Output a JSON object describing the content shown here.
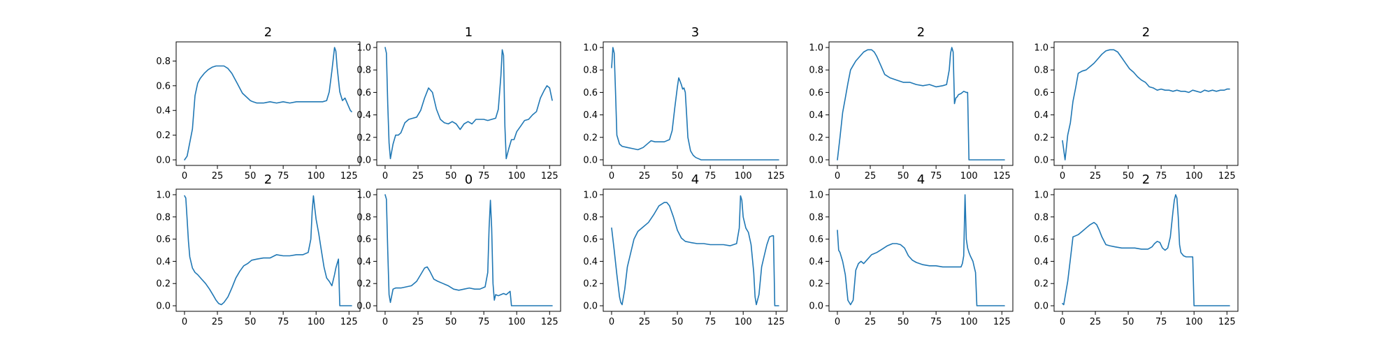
{
  "figure": {
    "line_color": "#1f77b4"
  },
  "chart_data": [
    {
      "type": "line",
      "title": "2",
      "xlim": [
        -6.35,
        133.35
      ],
      "ylim": [
        -0.045,
        0.955
      ],
      "xticks": [
        0,
        25,
        50,
        75,
        100,
        125
      ],
      "yticks": [
        0.0,
        0.2,
        0.4,
        0.6,
        0.8
      ],
      "ytick_labels": [
        "0.0",
        "0.2",
        "0.4",
        "0.6",
        "0.8"
      ],
      "x": [
        0,
        2,
        4,
        6,
        8,
        10,
        12,
        15,
        18,
        21,
        24,
        27,
        30,
        33,
        36,
        40,
        44,
        48,
        50,
        52,
        55,
        60,
        65,
        70,
        75,
        80,
        85,
        90,
        95,
        100,
        105,
        108,
        110,
        112,
        114,
        115,
        116,
        117,
        118,
        120,
        122,
        124,
        126,
        127
      ],
      "y": [
        0.0,
        0.03,
        0.14,
        0.25,
        0.52,
        0.62,
        0.66,
        0.7,
        0.73,
        0.75,
        0.76,
        0.76,
        0.76,
        0.74,
        0.7,
        0.62,
        0.54,
        0.5,
        0.48,
        0.47,
        0.46,
        0.46,
        0.47,
        0.46,
        0.47,
        0.46,
        0.47,
        0.47,
        0.47,
        0.47,
        0.47,
        0.48,
        0.55,
        0.72,
        0.91,
        0.88,
        0.75,
        0.65,
        0.55,
        0.48,
        0.5,
        0.45,
        0.4,
        0.39
      ]
    },
    {
      "type": "line",
      "title": "1",
      "xlim": [
        -6.35,
        133.35
      ],
      "ylim": [
        -0.05,
        1.05
      ],
      "xticks": [
        0,
        25,
        50,
        75,
        100,
        125
      ],
      "yticks": [
        0.0,
        0.2,
        0.4,
        0.6,
        0.8,
        1.0
      ],
      "ytick_labels": [
        "0.0",
        "0.2",
        "0.4",
        "0.6",
        "0.8",
        "1.0"
      ],
      "x": [
        0,
        1,
        2,
        3,
        4,
        6,
        8,
        10,
        12,
        15,
        18,
        21,
        24,
        27,
        30,
        33,
        36,
        39,
        42,
        45,
        48,
        51,
        54,
        57,
        60,
        63,
        66,
        69,
        72,
        75,
        78,
        81,
        84,
        86,
        88,
        89,
        90,
        91,
        92,
        94,
        96,
        98,
        100,
        103,
        106,
        109,
        112,
        115,
        118,
        121,
        123,
        125,
        127
      ],
      "y": [
        1.0,
        0.95,
        0.5,
        0.15,
        0.01,
        0.14,
        0.22,
        0.22,
        0.24,
        0.33,
        0.36,
        0.37,
        0.38,
        0.44,
        0.55,
        0.64,
        0.6,
        0.45,
        0.36,
        0.33,
        0.32,
        0.34,
        0.32,
        0.27,
        0.32,
        0.34,
        0.32,
        0.36,
        0.36,
        0.36,
        0.35,
        0.36,
        0.37,
        0.45,
        0.75,
        0.98,
        0.93,
        0.3,
        0.01,
        0.1,
        0.18,
        0.18,
        0.25,
        0.3,
        0.35,
        0.36,
        0.4,
        0.43,
        0.55,
        0.62,
        0.66,
        0.64,
        0.53
      ]
    },
    {
      "type": "line",
      "title": "3",
      "xlim": [
        -6.35,
        133.35
      ],
      "ylim": [
        -0.05,
        1.05
      ],
      "xticks": [
        0,
        25,
        50,
        75,
        100,
        125
      ],
      "yticks": [
        0.0,
        0.2,
        0.4,
        0.6,
        0.8,
        1.0
      ],
      "ytick_labels": [
        "0.0",
        "0.2",
        "0.4",
        "0.6",
        "0.8",
        "1.0"
      ],
      "x": [
        0,
        1,
        2,
        3,
        4,
        6,
        8,
        12,
        16,
        20,
        24,
        28,
        30,
        33,
        36,
        40,
        44,
        46,
        48,
        50,
        51,
        52,
        53,
        54,
        55,
        56,
        57,
        58,
        60,
        62,
        64,
        66,
        68,
        70,
        75,
        80,
        90,
        100,
        110,
        120,
        127
      ],
      "y": [
        0.82,
        1.0,
        0.95,
        0.6,
        0.22,
        0.14,
        0.12,
        0.11,
        0.1,
        0.09,
        0.11,
        0.15,
        0.17,
        0.16,
        0.16,
        0.16,
        0.18,
        0.26,
        0.46,
        0.65,
        0.73,
        0.7,
        0.67,
        0.63,
        0.64,
        0.6,
        0.4,
        0.2,
        0.08,
        0.04,
        0.02,
        0.01,
        0.0,
        0.0,
        0.0,
        0.0,
        0.0,
        0.0,
        0.0,
        0.0,
        0.0
      ]
    },
    {
      "type": "line",
      "title": "2",
      "xlim": [
        -6.35,
        133.35
      ],
      "ylim": [
        -0.05,
        1.05
      ],
      "xticks": [
        0,
        25,
        50,
        75,
        100,
        125
      ],
      "yticks": [
        0.0,
        0.2,
        0.4,
        0.6,
        0.8,
        1.0
      ],
      "ytick_labels": [
        "0.0",
        "0.2",
        "0.4",
        "0.6",
        "0.8",
        "1.0"
      ],
      "x": [
        0,
        2,
        4,
        6,
        8,
        10,
        12,
        14,
        17,
        20,
        23,
        26,
        28,
        30,
        33,
        36,
        40,
        45,
        50,
        55,
        60,
        65,
        70,
        75,
        80,
        83,
        85,
        86,
        87,
        88,
        89,
        90,
        91,
        92,
        94,
        96,
        98,
        99,
        100,
        101,
        102,
        105,
        110,
        115,
        120,
        127
      ],
      "y": [
        0.0,
        0.2,
        0.42,
        0.55,
        0.68,
        0.8,
        0.84,
        0.88,
        0.92,
        0.96,
        0.98,
        0.98,
        0.96,
        0.92,
        0.84,
        0.76,
        0.73,
        0.71,
        0.69,
        0.69,
        0.67,
        0.66,
        0.67,
        0.65,
        0.66,
        0.67,
        0.8,
        0.95,
        1.0,
        0.96,
        0.5,
        0.55,
        0.56,
        0.58,
        0.59,
        0.61,
        0.6,
        0.6,
        0.0,
        0.0,
        0.0,
        0.0,
        0.0,
        0.0,
        0.0,
        0.0
      ]
    },
    {
      "type": "line",
      "title": "2",
      "xlim": [
        -6.35,
        133.35
      ],
      "ylim": [
        -0.05,
        1.05
      ],
      "xticks": [
        0,
        25,
        50,
        75,
        100,
        125
      ],
      "yticks": [
        0.0,
        0.2,
        0.4,
        0.6,
        0.8,
        1.0
      ],
      "ytick_labels": [
        "0.0",
        "0.2",
        "0.4",
        "0.6",
        "0.8",
        "1.0"
      ],
      "x": [
        0,
        2,
        4,
        6,
        8,
        10,
        12,
        15,
        18,
        21,
        24,
        27,
        30,
        33,
        36,
        39,
        42,
        45,
        48,
        51,
        54,
        57,
        60,
        63,
        66,
        69,
        72,
        75,
        78,
        81,
        84,
        87,
        90,
        93,
        96,
        99,
        102,
        105,
        108,
        111,
        114,
        117,
        120,
        123,
        125,
        127
      ],
      "y": [
        0.17,
        0.0,
        0.22,
        0.33,
        0.52,
        0.64,
        0.77,
        0.79,
        0.8,
        0.83,
        0.86,
        0.9,
        0.94,
        0.97,
        0.98,
        0.98,
        0.96,
        0.91,
        0.86,
        0.81,
        0.78,
        0.74,
        0.71,
        0.69,
        0.65,
        0.64,
        0.62,
        0.63,
        0.62,
        0.62,
        0.61,
        0.62,
        0.61,
        0.61,
        0.6,
        0.62,
        0.61,
        0.6,
        0.62,
        0.61,
        0.62,
        0.61,
        0.62,
        0.62,
        0.63,
        0.63
      ]
    },
    {
      "type": "line",
      "title": "2",
      "xlim": [
        -6.35,
        133.35
      ],
      "ylim": [
        -0.05,
        1.05
      ],
      "xticks": [
        0,
        25,
        50,
        75,
        100,
        125
      ],
      "yticks": [
        0.0,
        0.2,
        0.4,
        0.6,
        0.8,
        1.0
      ],
      "ytick_labels": [
        "0.0",
        "0.2",
        "0.4",
        "0.6",
        "0.8",
        "1.0"
      ],
      "x": [
        0,
        1,
        2,
        3,
        4,
        6,
        8,
        10,
        13,
        16,
        19,
        22,
        24,
        26,
        28,
        30,
        33,
        36,
        39,
        42,
        45,
        48,
        51,
        55,
        60,
        65,
        70,
        75,
        80,
        85,
        90,
        94,
        96,
        97,
        98,
        99,
        100,
        102,
        104,
        106,
        108,
        110,
        112,
        114,
        115,
        116,
        117,
        118,
        120,
        122,
        124,
        126,
        127
      ],
      "y": [
        0.99,
        0.97,
        0.78,
        0.58,
        0.44,
        0.34,
        0.3,
        0.28,
        0.24,
        0.2,
        0.15,
        0.09,
        0.05,
        0.02,
        0.01,
        0.03,
        0.08,
        0.16,
        0.25,
        0.31,
        0.36,
        0.38,
        0.41,
        0.42,
        0.43,
        0.43,
        0.46,
        0.45,
        0.45,
        0.46,
        0.46,
        0.48,
        0.6,
        0.85,
        0.99,
        0.88,
        0.78,
        0.65,
        0.5,
        0.35,
        0.25,
        0.22,
        0.18,
        0.28,
        0.34,
        0.38,
        0.42,
        0.0,
        0.0,
        0.0,
        0.0,
        0.0,
        0.0
      ]
    },
    {
      "type": "line",
      "title": "0",
      "xlim": [
        -6.35,
        133.35
      ],
      "ylim": [
        -0.05,
        1.05
      ],
      "xticks": [
        0,
        25,
        50,
        75,
        100,
        125
      ],
      "yticks": [
        0.0,
        0.2,
        0.4,
        0.6,
        0.8,
        1.0
      ],
      "ytick_labels": [
        "0.0",
        "0.2",
        "0.4",
        "0.6",
        "0.8",
        "1.0"
      ],
      "x": [
        0,
        1,
        2,
        3,
        4,
        6,
        8,
        12,
        16,
        20,
        24,
        27,
        30,
        32,
        34,
        37,
        40,
        44,
        48,
        52,
        56,
        60,
        64,
        68,
        72,
        76,
        78,
        79,
        80,
        81,
        82,
        83,
        84,
        86,
        88,
        90,
        92,
        94,
        95,
        96,
        100,
        105,
        110,
        115,
        120,
        127
      ],
      "y": [
        1.0,
        0.96,
        0.5,
        0.1,
        0.03,
        0.15,
        0.16,
        0.16,
        0.17,
        0.18,
        0.22,
        0.28,
        0.34,
        0.35,
        0.31,
        0.24,
        0.22,
        0.2,
        0.18,
        0.15,
        0.14,
        0.15,
        0.16,
        0.15,
        0.15,
        0.17,
        0.3,
        0.7,
        0.95,
        0.7,
        0.2,
        0.05,
        0.1,
        0.09,
        0.1,
        0.11,
        0.1,
        0.12,
        0.13,
        0.0,
        0.0,
        0.0,
        0.0,
        0.0,
        0.0,
        0.0
      ]
    },
    {
      "type": "line",
      "title": "4",
      "xlim": [
        -6.35,
        133.35
      ],
      "ylim": [
        -0.05,
        1.05
      ],
      "xticks": [
        0,
        25,
        50,
        75,
        100,
        125
      ],
      "yticks": [
        0.0,
        0.2,
        0.4,
        0.6,
        0.8,
        1.0
      ],
      "ytick_labels": [
        "0.0",
        "0.2",
        "0.4",
        "0.6",
        "0.8",
        "1.0"
      ],
      "x": [
        0,
        2,
        4,
        6,
        7,
        8,
        10,
        12,
        14,
        17,
        20,
        24,
        28,
        32,
        36,
        40,
        42,
        44,
        47,
        50,
        53,
        56,
        60,
        65,
        70,
        75,
        80,
        85,
        90,
        95,
        97,
        98,
        99,
        100,
        102,
        104,
        106,
        108,
        109,
        110,
        112,
        114,
        116,
        118,
        120,
        122,
        123,
        124,
        125,
        126,
        127
      ],
      "y": [
        0.7,
        0.5,
        0.28,
        0.08,
        0.03,
        0.01,
        0.15,
        0.35,
        0.45,
        0.6,
        0.67,
        0.71,
        0.75,
        0.82,
        0.9,
        0.93,
        0.93,
        0.9,
        0.8,
        0.68,
        0.61,
        0.58,
        0.57,
        0.56,
        0.56,
        0.55,
        0.55,
        0.55,
        0.54,
        0.56,
        0.7,
        0.99,
        0.95,
        0.8,
        0.7,
        0.66,
        0.55,
        0.3,
        0.08,
        0.01,
        0.1,
        0.35,
        0.45,
        0.55,
        0.62,
        0.63,
        0.63,
        0.0,
        0.0,
        0.0,
        0.0
      ]
    },
    {
      "type": "line",
      "title": "4",
      "xlim": [
        -6.35,
        133.35
      ],
      "ylim": [
        -0.05,
        1.05
      ],
      "xticks": [
        0,
        25,
        50,
        75,
        100,
        125
      ],
      "yticks": [
        0.0,
        0.2,
        0.4,
        0.6,
        0.8,
        1.0
      ],
      "ytick_labels": [
        "0.0",
        "0.2",
        "0.4",
        "0.6",
        "0.8",
        "1.0"
      ],
      "x": [
        0,
        1,
        2,
        4,
        6,
        8,
        10,
        12,
        14,
        16,
        18,
        20,
        23,
        26,
        30,
        34,
        38,
        42,
        45,
        48,
        51,
        54,
        57,
        60,
        65,
        70,
        75,
        80,
        85,
        90,
        94,
        95,
        96,
        97,
        98,
        99,
        100,
        101,
        103,
        104,
        105,
        106,
        108,
        110,
        115,
        120,
        127
      ],
      "y": [
        0.68,
        0.5,
        0.48,
        0.4,
        0.28,
        0.05,
        0.01,
        0.05,
        0.32,
        0.38,
        0.4,
        0.38,
        0.42,
        0.46,
        0.48,
        0.51,
        0.54,
        0.56,
        0.56,
        0.55,
        0.52,
        0.45,
        0.41,
        0.39,
        0.37,
        0.36,
        0.36,
        0.35,
        0.35,
        0.35,
        0.35,
        0.38,
        0.45,
        1.0,
        0.6,
        0.52,
        0.48,
        0.45,
        0.4,
        0.35,
        0.3,
        0.0,
        0.0,
        0.0,
        0.0,
        0.0,
        0.0
      ]
    },
    {
      "type": "line",
      "title": "2",
      "xlim": [
        -6.35,
        133.35
      ],
      "ylim": [
        -0.05,
        1.05
      ],
      "xticks": [
        0,
        25,
        50,
        75,
        100,
        125
      ],
      "yticks": [
        0.0,
        0.2,
        0.4,
        0.6,
        0.8,
        1.0
      ],
      "ytick_labels": [
        "0.0",
        "0.2",
        "0.4",
        "0.6",
        "0.8",
        "1.0"
      ],
      "x": [
        0,
        1,
        2,
        4,
        6,
        8,
        10,
        12,
        15,
        18,
        21,
        24,
        26,
        28,
        30,
        33,
        36,
        40,
        45,
        50,
        55,
        60,
        65,
        68,
        70,
        72,
        74,
        76,
        78,
        80,
        82,
        84,
        85,
        86,
        87,
        88,
        89,
        90,
        92,
        94,
        96,
        98,
        99,
        100,
        105,
        110,
        115,
        120,
        127
      ],
      "y": [
        0.02,
        0.01,
        0.08,
        0.22,
        0.42,
        0.62,
        0.63,
        0.64,
        0.67,
        0.7,
        0.73,
        0.75,
        0.73,
        0.68,
        0.62,
        0.55,
        0.54,
        0.53,
        0.52,
        0.52,
        0.52,
        0.51,
        0.51,
        0.53,
        0.56,
        0.58,
        0.57,
        0.52,
        0.5,
        0.52,
        0.62,
        0.85,
        0.95,
        1.0,
        0.97,
        0.8,
        0.55,
        0.48,
        0.45,
        0.44,
        0.44,
        0.44,
        0.44,
        0.0,
        0.0,
        0.0,
        0.0,
        0.0,
        0.0
      ]
    }
  ]
}
